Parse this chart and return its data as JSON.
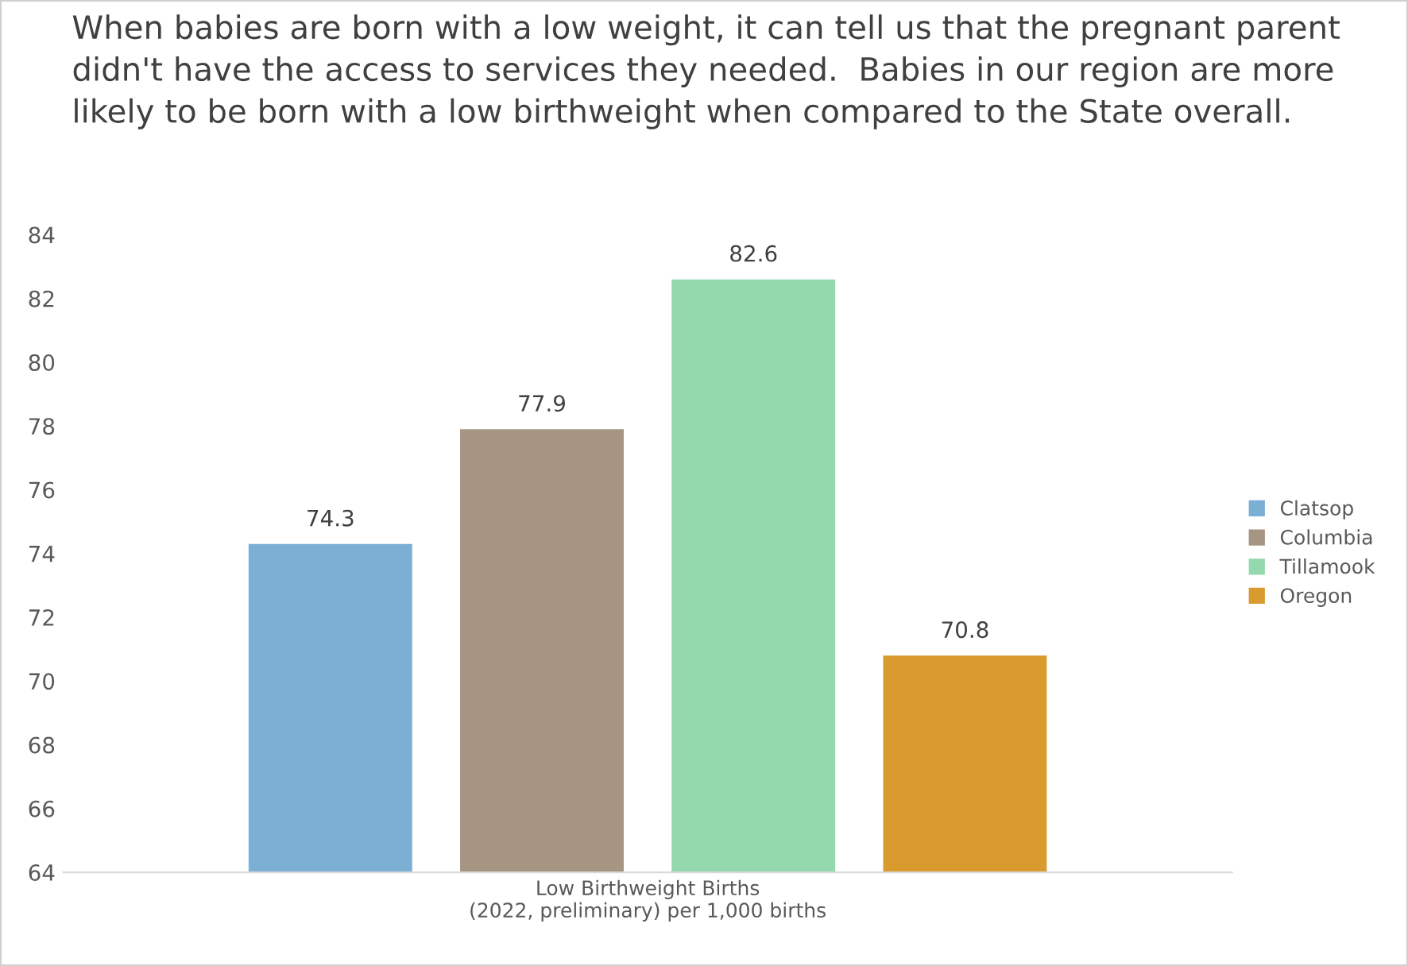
{
  "chart_data": {
    "type": "bar",
    "title": "When babies are born with a low weight, it can tell us that the pregnant parent didn't have the access to services they needed.  Babies in our region are more likely to be born with a low birthweight when compared to the State overall.",
    "categories": [
      "Low Birthweight Births\n(2022, preliminary) per 1,000 births"
    ],
    "series": [
      {
        "name": "Clatsop",
        "color": "#7bafd4",
        "values": [
          74.3
        ]
      },
      {
        "name": "Columbia",
        "color": "#a59582",
        "values": [
          77.9
        ]
      },
      {
        "name": "Tillamook",
        "color": "#94d8ae",
        "values": [
          82.6
        ]
      },
      {
        "name": "Oregon",
        "color": "#d99a2e",
        "values": [
          70.8
        ]
      }
    ],
    "ylim": [
      64,
      84
    ],
    "yticks": [
      64,
      66,
      68,
      70,
      72,
      74,
      76,
      78,
      80,
      82,
      84
    ],
    "data_labels": true,
    "legend": "right",
    "grid": false
  }
}
